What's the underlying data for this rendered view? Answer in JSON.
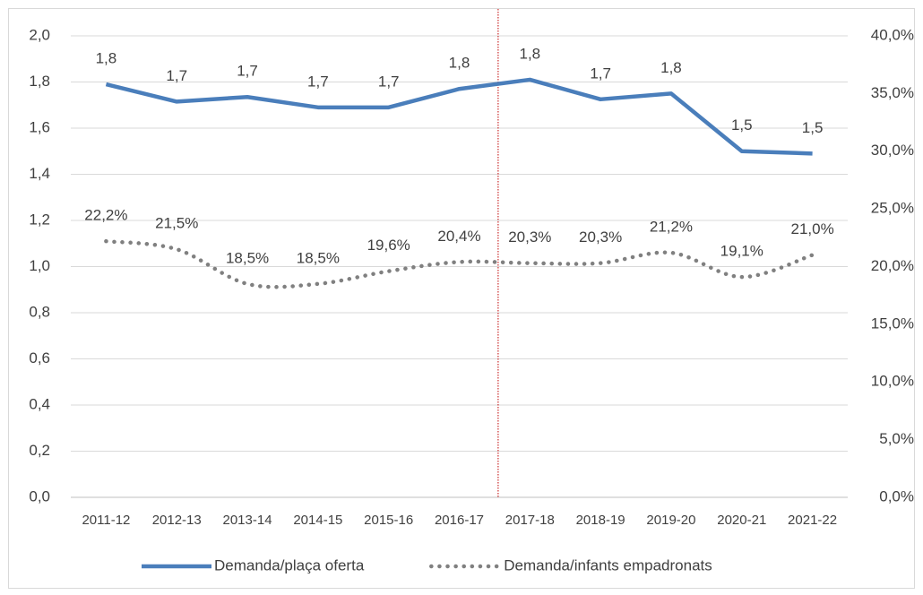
{
  "chart_data": {
    "type": "line",
    "categories": [
      "2011-12",
      "2012-13",
      "2013-14",
      "2014-15",
      "2015-16",
      "2016-17",
      "2017-18",
      "2018-19",
      "2019-20",
      "2020-21",
      "2021-22"
    ],
    "series": [
      {
        "name": "Demanda/plaça oferta",
        "color": "#4a7ebb",
        "style": "solid",
        "values": [
          1.79,
          1.715,
          1.735,
          1.69,
          1.69,
          1.77,
          1.81,
          1.725,
          1.75,
          1.5,
          1.49
        ],
        "value_labels": [
          "1,8",
          "1,7",
          "1,7",
          "1,7",
          "1,7",
          "1,8",
          "1,8",
          "1,7",
          "1,8",
          "1,5",
          "1,5"
        ]
      },
      {
        "name": "Demanda/infants empadronats",
        "color": "#808080",
        "style": "dotted",
        "axis": "y2",
        "values": [
          22.2,
          21.5,
          18.5,
          18.5,
          19.6,
          20.4,
          20.3,
          20.3,
          21.2,
          19.1,
          21.0
        ],
        "value_labels": [
          "22,2%",
          "21,5%",
          "18,5%",
          "18,5%",
          "19,6%",
          "20,4%",
          "20,3%",
          "20,3%",
          "21,2%",
          "19,1%",
          "21,0%"
        ]
      }
    ],
    "ylim": [
      0,
      2
    ],
    "yticks": [
      {
        "value": 0,
        "label": "0,0"
      },
      {
        "value": 0.2,
        "label": "0,2"
      },
      {
        "value": 0.4,
        "label": "0,4"
      },
      {
        "value": 0.6,
        "label": "0,6"
      },
      {
        "value": 0.8,
        "label": "0,8"
      },
      {
        "value": 1,
        "label": "1,0"
      },
      {
        "value": 1.2,
        "label": "1,2"
      },
      {
        "value": 1.4,
        "label": "1,4"
      },
      {
        "value": 1.6,
        "label": "1,6"
      },
      {
        "value": 1.8,
        "label": "1,8"
      },
      {
        "value": 2,
        "label": "2,0"
      }
    ],
    "y2lim": [
      0,
      40
    ],
    "y2ticks": [
      {
        "value": 0,
        "label": "0,0%"
      },
      {
        "value": 5,
        "label": "5,0%"
      },
      {
        "value": 10,
        "label": "10,0%"
      },
      {
        "value": 15,
        "label": "15,0%"
      },
      {
        "value": 20,
        "label": "20,0%"
      },
      {
        "value": 25,
        "label": "25,0%"
      },
      {
        "value": 30,
        "label": "30,0%"
      },
      {
        "value": 35,
        "label": "35,0%"
      },
      {
        "value": 40,
        "label": "40,0%"
      }
    ],
    "grid": true,
    "legend": "bottom"
  }
}
